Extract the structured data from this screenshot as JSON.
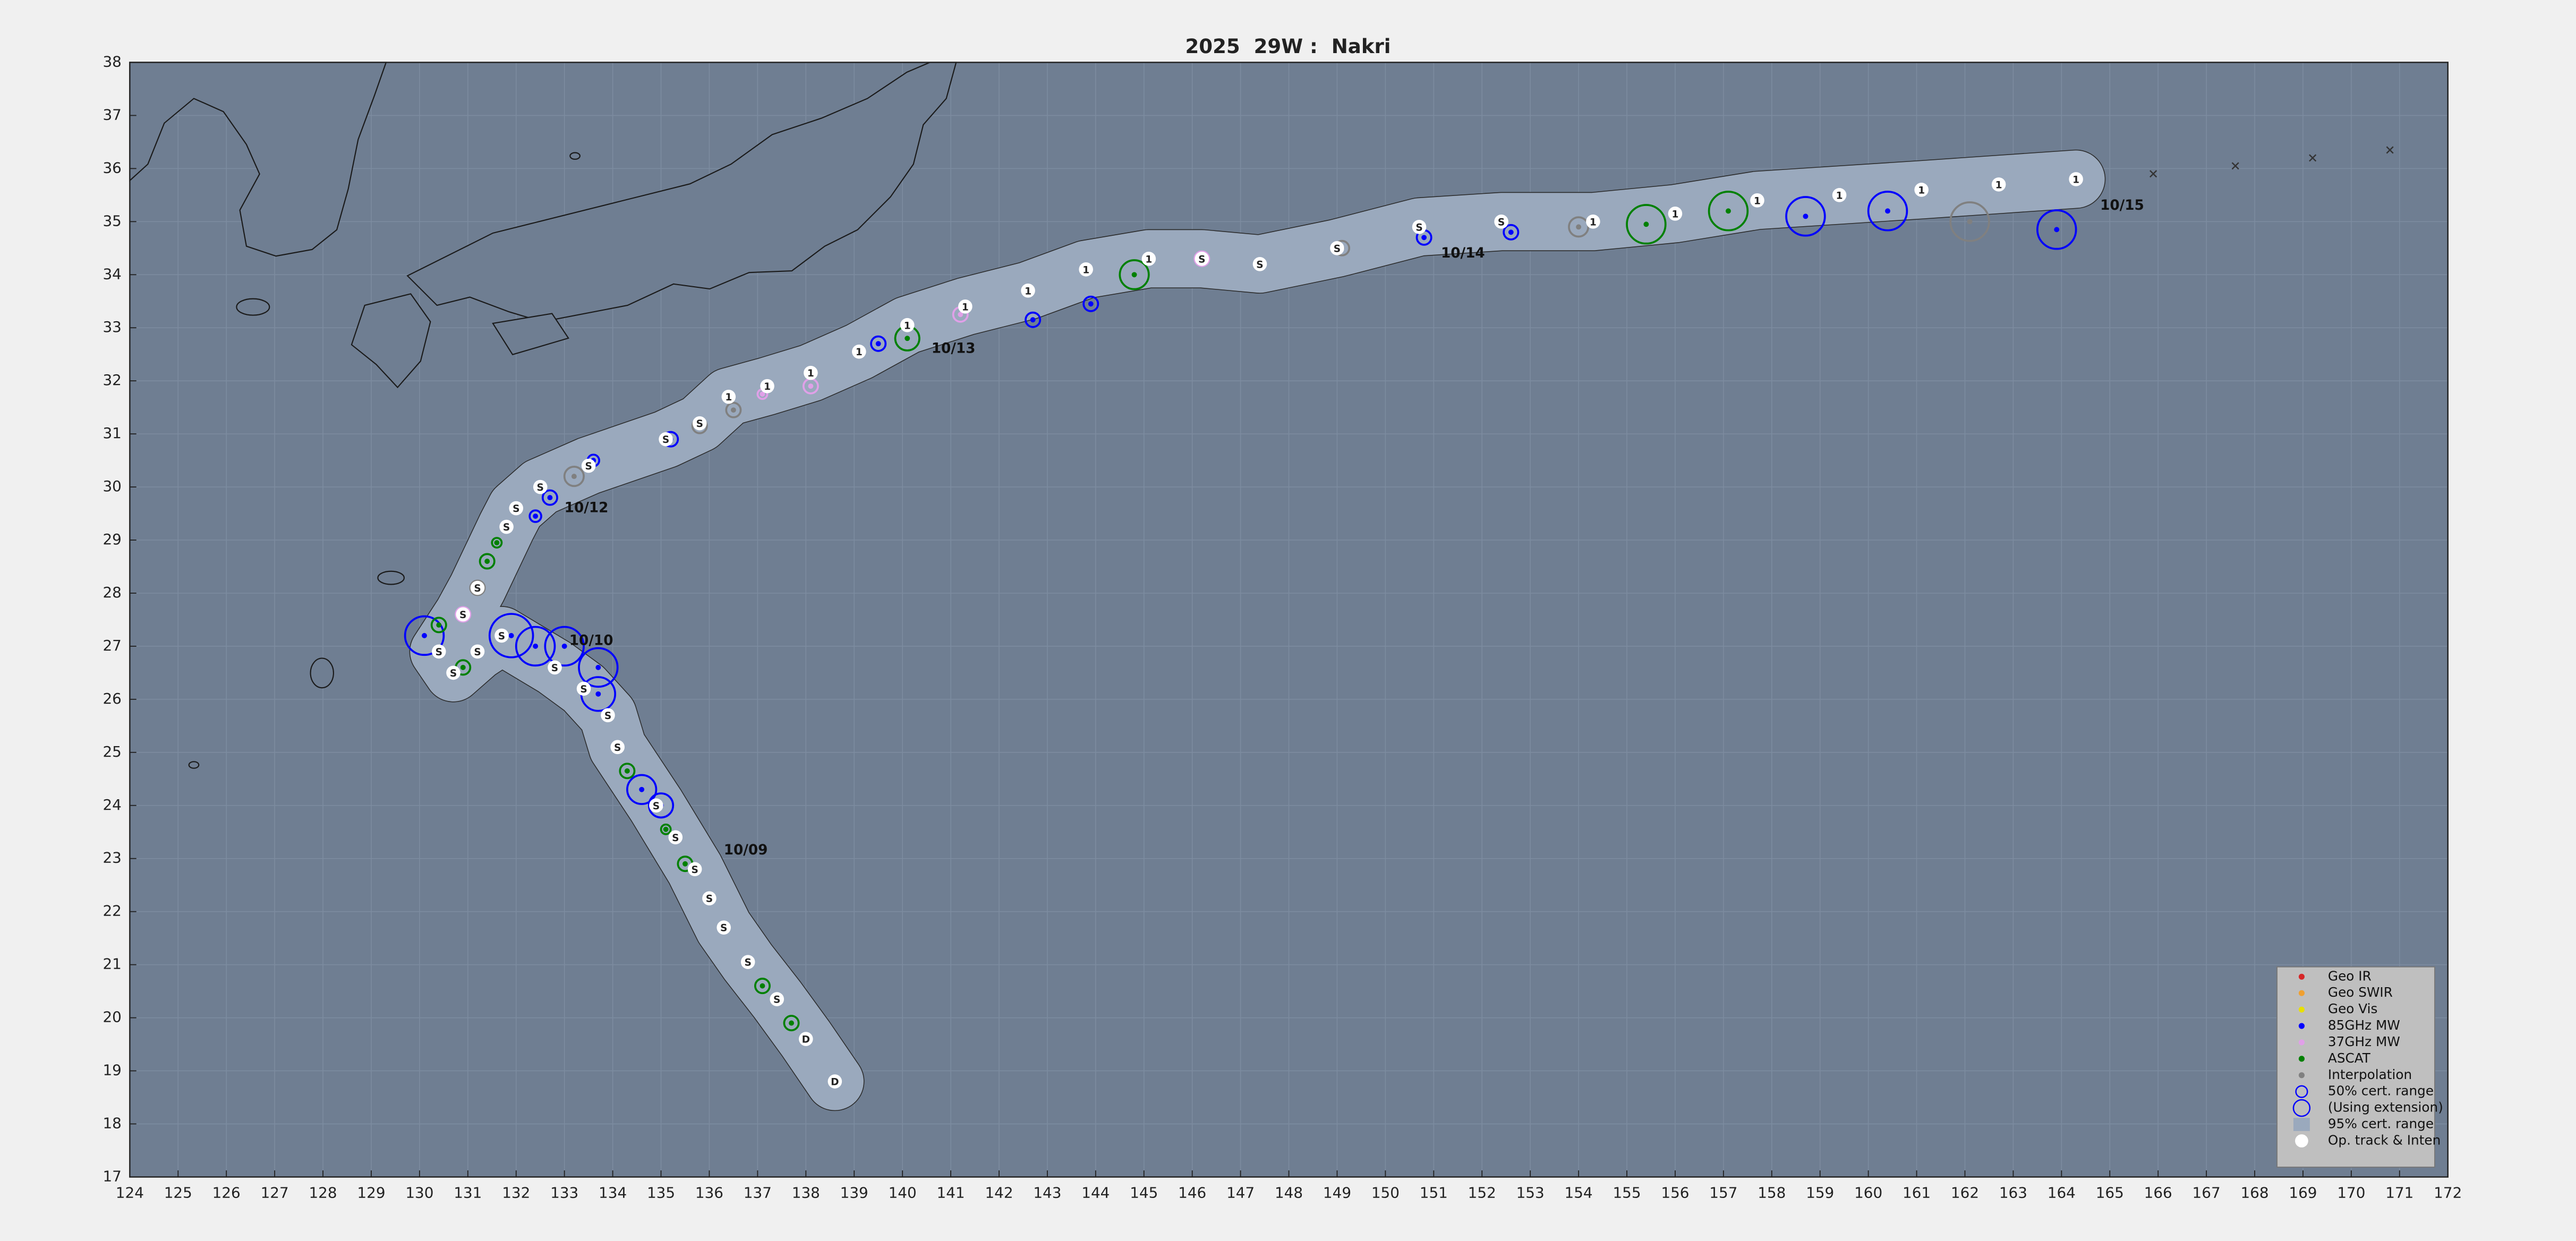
{
  "chart_data": {
    "type": "scatter",
    "title": "2025  29W :  Nakri",
    "xlim": [
      124,
      172
    ],
    "xticks": [
      124,
      125,
      126,
      127,
      128,
      129,
      130,
      131,
      132,
      133,
      134,
      135,
      136,
      137,
      138,
      139,
      140,
      141,
      142,
      143,
      144,
      145,
      146,
      147,
      148,
      149,
      150,
      151,
      152,
      153,
      154,
      155,
      156,
      157,
      158,
      159,
      160,
      161,
      162,
      163,
      164,
      165,
      166,
      167,
      168,
      169,
      170,
      171,
      172
    ],
    "ylim": [
      17,
      38
    ],
    "yticks": [
      17,
      18,
      19,
      20,
      21,
      22,
      23,
      24,
      25,
      26,
      27,
      28,
      29,
      30,
      31,
      32,
      33,
      34,
      35,
      36,
      37,
      38
    ],
    "grid": true,
    "track": {
      "name": "Op. track & Inten",
      "color": "#ffffff",
      "envelope_color": "#9aa9bd",
      "x": [
        138.6,
        138.0,
        137.4,
        136.8,
        136.3,
        136.0,
        135.7,
        135.3,
        134.9,
        134.1,
        133.9,
        133.4,
        132.8,
        131.7,
        131.2,
        130.7,
        130.4,
        130.9,
        131.2,
        131.8,
        132.0,
        132.5,
        133.5,
        135.1,
        135.8,
        136.4,
        137.2,
        138.1,
        139.1,
        140.1,
        141.3,
        142.6,
        143.8,
        145.1,
        146.2,
        147.4,
        149.0,
        150.7,
        152.4,
        154.3,
        156.0,
        157.7,
        159.4,
        161.1,
        162.7,
        164.3
      ],
      "y": [
        18.8,
        19.6,
        20.35,
        21.05,
        21.7,
        22.25,
        22.8,
        23.4,
        24.0,
        25.1,
        25.7,
        26.2,
        26.6,
        27.2,
        26.9,
        26.5,
        26.9,
        27.6,
        28.1,
        29.25,
        29.6,
        30.0,
        30.4,
        30.9,
        31.2,
        31.7,
        31.9,
        32.15,
        32.55,
        33.05,
        33.4,
        33.7,
        34.1,
        34.3,
        34.3,
        34.2,
        34.5,
        34.9,
        35.0,
        35.0,
        35.15,
        35.4,
        35.5,
        35.6,
        35.7,
        35.8
      ],
      "labels": [
        "D",
        "D",
        "S",
        "S",
        "S",
        "S",
        "S",
        "S",
        "S",
        "S",
        "S",
        "S",
        "S",
        "S",
        "S",
        "S",
        "S",
        "S",
        "S",
        "S",
        "S",
        "S",
        "S",
        "S",
        "S",
        "1",
        "1",
        "1",
        "1",
        "1",
        "1",
        "1",
        "1",
        "1",
        "S",
        "S",
        "S",
        "S",
        "S",
        "1",
        "1",
        "1",
        "1",
        "1",
        "1",
        "1"
      ]
    },
    "series": [
      {
        "name": "Geo IR",
        "color": "#d62728",
        "x": [],
        "y": [],
        "r": []
      },
      {
        "name": "Geo SWIR",
        "color": "#f0a030",
        "x": [],
        "y": [],
        "r": []
      },
      {
        "name": "Geo Vis",
        "color": "#e8e000",
        "x": [],
        "y": [],
        "r": []
      },
      {
        "name": "85GHz MW",
        "color": "#0000ff",
        "x": [
          132.7,
          132.4,
          133.6,
          135.2,
          139.5,
          142.7,
          143.9,
          150.8,
          152.6,
          158.7,
          160.4,
          163.9,
          133.7,
          133.7,
          135.0,
          134.6,
          130.1,
          131.9,
          132.4,
          133.0
        ],
        "y": [
          29.8,
          29.45,
          30.5,
          30.9,
          32.7,
          33.15,
          33.45,
          34.7,
          34.8,
          35.1,
          35.2,
          34.85,
          26.6,
          26.1,
          24.0,
          24.3,
          27.2,
          27.2,
          27.0,
          27.0
        ],
        "r": [
          0.15,
          0.12,
          0.12,
          0.15,
          0.15,
          0.15,
          0.15,
          0.15,
          0.15,
          0.4,
          0.4,
          0.4,
          0.4,
          0.35,
          0.25,
          0.3,
          0.4,
          0.45,
          0.4,
          0.4
        ]
      },
      {
        "name": "37GHz MW",
        "color": "#e0a0e8",
        "x": [
          130.9,
          137.1,
          138.1,
          141.2,
          146.2,
          147.4
        ],
        "y": [
          27.6,
          31.75,
          31.9,
          33.25,
          34.3,
          34.2
        ],
        "r": [
          0.15,
          0.1,
          0.15,
          0.15,
          0.15,
          0.1
        ]
      },
      {
        "name": "ASCAT",
        "color": "#008000",
        "x": [
          131.4,
          131.6,
          130.4,
          130.9,
          134.1,
          134.3,
          135.1,
          135.5,
          137.1,
          137.7,
          140.1,
          144.8,
          155.4,
          157.1
        ],
        "y": [
          28.6,
          28.95,
          27.4,
          26.6,
          25.1,
          24.65,
          23.55,
          22.9,
          20.6,
          19.9,
          32.8,
          34.0,
          34.95,
          35.2
        ],
        "r": [
          0.15,
          0.1,
          0.15,
          0.15,
          0.1,
          0.15,
          0.1,
          0.15,
          0.15,
          0.15,
          0.25,
          0.3,
          0.4,
          0.4
        ]
      },
      {
        "name": "Interpolation",
        "color": "#808080",
        "x": [
          133.2,
          135.8,
          136.5,
          131.2,
          149.1,
          154.0,
          162.1
        ],
        "y": [
          30.2,
          31.15,
          31.45,
          28.1,
          34.5,
          34.9,
          35.0
        ],
        "r": [
          0.2,
          0.15,
          0.15,
          0.15,
          0.15,
          0.2,
          0.4
        ]
      },
      {
        "color": "#333333",
        "marker": "x",
        "x": [
          165.9,
          167.6,
          169.2,
          170.8
        ],
        "y": [
          35.9,
          36.05,
          36.2,
          36.35
        ]
      }
    ],
    "annotations": [
      {
        "text": "10/09",
        "x": 136.3,
        "y": 23.15
      },
      {
        "text": "10/10",
        "x": 133.1,
        "y": 27.1
      },
      {
        "text": "10/12",
        "x": 133.0,
        "y": 29.6
      },
      {
        "text": "10/13",
        "x": 140.6,
        "y": 32.6
      },
      {
        "text": "10/14",
        "x": 151.15,
        "y": 34.4
      },
      {
        "text": "10/15",
        "x": 164.8,
        "y": 35.3
      }
    ],
    "legend": {
      "position": "lower right",
      "entries": [
        "50% cert. range",
        "(Using extension)",
        "95% cert. range"
      ]
    }
  }
}
